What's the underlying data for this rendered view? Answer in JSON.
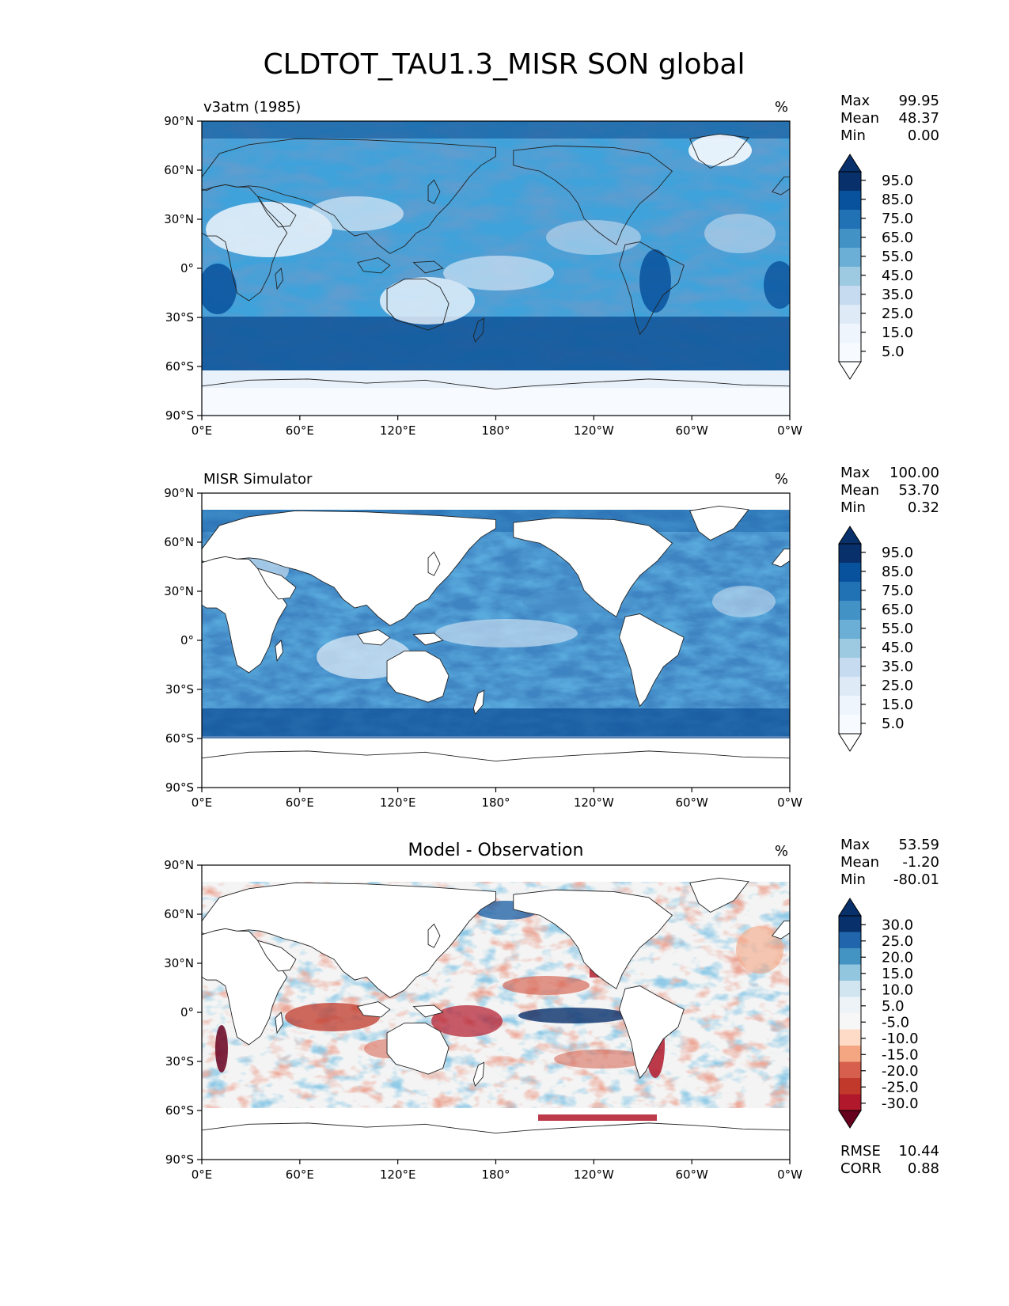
{
  "title": "CLDTOT_TAU1.3_MISR SON global",
  "x_ticks": [
    "0°E",
    "60°E",
    "120°E",
    "180°",
    "120°W",
    "60°W",
    "0°W"
  ],
  "y_ticks": [
    "90°N",
    "60°N",
    "30°N",
    "0°",
    "30°S",
    "60°S",
    "90°S"
  ],
  "panels": [
    {
      "left_title": "v3atm (1985)",
      "center_title": "",
      "units": "%",
      "stats": [
        {
          "label": "Max",
          "value": "99.95"
        },
        {
          "label": "Mean",
          "value": "48.37"
        },
        {
          "label": "Min",
          "value": "0.00"
        }
      ],
      "colorbar": {
        "labels": [
          "95.0",
          "85.0",
          "75.0",
          "65.0",
          "55.0",
          "45.0",
          "35.0",
          "25.0",
          "15.0",
          "5.0"
        ],
        "colors": [
          "#08306b",
          "#08519c",
          "#2171b5",
          "#4292c6",
          "#6baed6",
          "#9ecae1",
          "#c6dbef",
          "#deebf7",
          "#f7fbff"
        ],
        "extend_top": "#08306b",
        "extend_bottom": "#ffffff"
      },
      "extra_stats": []
    },
    {
      "left_title": "MISR Simulator",
      "center_title": "",
      "units": "%",
      "stats": [
        {
          "label": "Max",
          "value": "100.00"
        },
        {
          "label": "Mean",
          "value": "53.70"
        },
        {
          "label": "Min",
          "value": "0.32"
        }
      ],
      "colorbar": {
        "labels": [
          "95.0",
          "85.0",
          "75.0",
          "65.0",
          "55.0",
          "45.0",
          "35.0",
          "25.0",
          "15.0",
          "5.0"
        ],
        "colors": [
          "#08306b",
          "#08519c",
          "#2171b5",
          "#4292c6",
          "#6baed6",
          "#9ecae1",
          "#c6dbef",
          "#deebf7",
          "#f7fbff"
        ],
        "extend_top": "#08306b",
        "extend_bottom": "#ffffff"
      },
      "extra_stats": []
    },
    {
      "left_title": "",
      "center_title": "Model - Observation",
      "units": "%",
      "stats": [
        {
          "label": "Max",
          "value": "53.59"
        },
        {
          "label": "Mean",
          "value": "-1.20"
        },
        {
          "label": "Min",
          "value": "-80.01"
        }
      ],
      "colorbar": {
        "labels": [
          "30.0",
          "25.0",
          "20.0",
          "15.0",
          "10.0",
          "5.0",
          "-5.0",
          "-10.0",
          "-15.0",
          "-20.0",
          "-25.0",
          "-30.0"
        ],
        "colors": [
          "#08306b",
          "#2166ac",
          "#4393c3",
          "#92c5de",
          "#d1e5f0",
          "#f7f7f7",
          "#fddbc7",
          "#f4a582",
          "#d6604d",
          "#c0392b",
          "#b2182b"
        ],
        "extend_top": "#08306b",
        "extend_bottom": "#67001f"
      },
      "extra_stats": [
        {
          "label": "RMSE",
          "value": "10.44"
        },
        {
          "label": "CORR",
          "value": "0.88"
        }
      ]
    }
  ]
}
